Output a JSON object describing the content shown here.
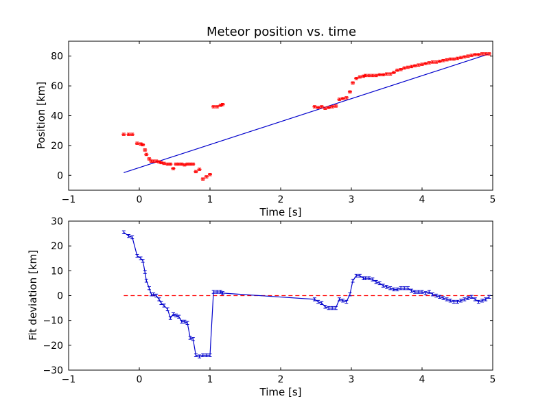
{
  "chart_data": [
    {
      "type": "scatter",
      "title": "Meteor position vs. time",
      "xlabel": "Time [s]",
      "ylabel": "Position [km]",
      "xlim": [
        -1,
        5
      ],
      "ylim": [
        -10,
        90
      ],
      "xticks": [
        -1,
        0,
        1,
        2,
        3,
        4,
        5
      ],
      "yticks": [
        0,
        20,
        40,
        60,
        80
      ],
      "xtick_labels": [
        "−1",
        "0",
        "1",
        "2",
        "3",
        "4",
        "5"
      ],
      "ytick_labels": [
        "0",
        "20",
        "40",
        "60",
        "80"
      ],
      "grid": false,
      "colors": {
        "points": "#ff0000",
        "fit": "#0000cc"
      },
      "fit_line": {
        "x": [
          -0.22,
          4.95
        ],
        "y": [
          1.8,
          81.5
        ]
      },
      "series": [
        {
          "x": [
            -0.22,
            -0.15,
            -0.1,
            -0.03,
            0.02,
            0.05,
            0.08,
            0.1,
            0.14,
            0.17,
            0.2,
            0.24,
            0.28,
            0.31,
            0.35,
            0.4,
            0.44,
            0.48,
            0.52,
            0.56,
            0.6,
            0.64,
            0.68,
            0.72,
            0.76,
            0.8,
            0.85,
            0.9,
            0.95,
            1.0,
            1.05,
            1.1,
            1.15,
            1.18,
            2.48,
            2.53,
            2.58,
            2.63,
            2.68,
            2.73,
            2.78,
            2.83,
            2.88,
            2.93,
            2.98,
            3.02,
            3.07,
            3.12,
            3.17,
            3.2,
            3.25,
            3.3,
            3.35,
            3.4,
            3.45,
            3.5,
            3.55,
            3.6,
            3.65,
            3.7,
            3.75,
            3.8,
            3.85,
            3.9,
            3.95,
            4.0,
            4.05,
            4.1,
            4.15,
            4.2,
            4.25,
            4.3,
            4.35,
            4.4,
            4.45,
            4.5,
            4.55,
            4.6,
            4.65,
            4.7,
            4.75,
            4.8,
            4.85,
            4.9,
            4.95
          ],
          "y": [
            27.5,
            27.5,
            27.5,
            21.5,
            21,
            20.5,
            17,
            14,
            11,
            9.5,
            9.5,
            9.5,
            9,
            8.5,
            8,
            7.5,
            7.5,
            4.5,
            7.5,
            7.5,
            7.5,
            7,
            7.5,
            7.5,
            7.5,
            2.5,
            4,
            -2.5,
            -1,
            0.5,
            46,
            46,
            47,
            47.5,
            46,
            45.5,
            46,
            45,
            45.5,
            46,
            46.5,
            51,
            51.5,
            52,
            56,
            62,
            65,
            66,
            66.5,
            67,
            67,
            67,
            67,
            67.5,
            67.5,
            68,
            68,
            69,
            70.5,
            71,
            72,
            72.5,
            73,
            73.5,
            74,
            74.5,
            75,
            75.5,
            76,
            76,
            76.5,
            77,
            77.5,
            78,
            78,
            78.5,
            79,
            79.5,
            80,
            80.5,
            81,
            81,
            81.5,
            81.5,
            81.5
          ],
          "yerr": 0.8
        }
      ]
    },
    {
      "type": "line",
      "xlabel": "Time [s]",
      "ylabel": "Fit deviation [km]",
      "xlim": [
        -1,
        5
      ],
      "ylim": [
        -30,
        30
      ],
      "xticks": [
        -1,
        0,
        1,
        2,
        3,
        4,
        5
      ],
      "yticks": [
        -30,
        -20,
        -10,
        0,
        10,
        20,
        30
      ],
      "xtick_labels": [
        "−1",
        "0",
        "1",
        "2",
        "3",
        "4",
        "5"
      ],
      "ytick_labels": [
        "−30",
        "−20",
        "−10",
        "0",
        "10",
        "20",
        "30"
      ],
      "grid": false,
      "colors": {
        "line": "#0000cc",
        "zero": "#ff0000"
      },
      "zero_line": {
        "y": 0,
        "x": [
          -0.22,
          4.95
        ]
      },
      "series": [
        {
          "x": [
            -0.22,
            -0.15,
            -0.1,
            -0.03,
            0.02,
            0.05,
            0.08,
            0.1,
            0.14,
            0.17,
            0.2,
            0.24,
            0.28,
            0.31,
            0.35,
            0.4,
            0.44,
            0.48,
            0.52,
            0.56,
            0.6,
            0.64,
            0.68,
            0.72,
            0.76,
            0.8,
            0.85,
            0.9,
            0.95,
            1.0,
            1.05,
            1.1,
            1.15,
            1.18,
            2.48,
            2.53,
            2.58,
            2.63,
            2.68,
            2.73,
            2.78,
            2.83,
            2.88,
            2.93,
            2.98,
            3.02,
            3.07,
            3.12,
            3.17,
            3.2,
            3.25,
            3.3,
            3.35,
            3.4,
            3.45,
            3.5,
            3.55,
            3.6,
            3.65,
            3.7,
            3.75,
            3.8,
            3.85,
            3.9,
            3.95,
            4.0,
            4.05,
            4.1,
            4.15,
            4.2,
            4.25,
            4.3,
            4.35,
            4.4,
            4.45,
            4.5,
            4.55,
            4.6,
            4.65,
            4.7,
            4.75,
            4.8,
            4.85,
            4.9,
            4.95
          ],
          "y": [
            25.5,
            24,
            23.5,
            16,
            15,
            14,
            9.5,
            6,
            3,
            0.5,
            0.5,
            0,
            -1.5,
            -3,
            -4,
            -5.5,
            -9,
            -7.5,
            -8,
            -8.5,
            -10.5,
            -10.5,
            -11,
            -17,
            -17.5,
            -24,
            -24.5,
            -24,
            -24,
            -24,
            1.5,
            1.5,
            1.5,
            1,
            -1.5,
            -2.5,
            -3,
            -4.5,
            -5,
            -5,
            -5,
            -1.5,
            -2,
            -2.5,
            0.5,
            6,
            8,
            8,
            7,
            7,
            7,
            6.5,
            5.5,
            5,
            4,
            3.5,
            3,
            2.5,
            2.5,
            3,
            3,
            3,
            2,
            1.5,
            1.5,
            1.5,
            1,
            1.5,
            0.5,
            0,
            -0.5,
            -1,
            -1.5,
            -2,
            -2.5,
            -2.5,
            -2,
            -1.5,
            -1,
            -0.5,
            -1.5,
            -2.5,
            -2,
            -1.5,
            -0.5
          ],
          "yerr": 0.6
        }
      ]
    }
  ]
}
